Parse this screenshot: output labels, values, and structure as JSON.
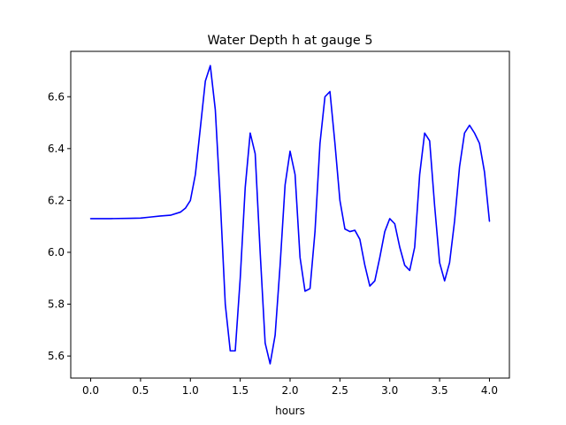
{
  "chart_data": {
    "type": "line",
    "title": "Water Depth h at gauge 5",
    "xlabel": "hours",
    "ylabel": "",
    "xlim": [
      -0.2,
      4.2
    ],
    "ylim": [
      5.515,
      6.775
    ],
    "xticks": [
      0.0,
      0.5,
      1.0,
      1.5,
      2.0,
      2.5,
      3.0,
      3.5,
      4.0
    ],
    "xtick_labels": [
      "0.0",
      "0.5",
      "1.0",
      "1.5",
      "2.0",
      "2.5",
      "3.0",
      "3.5",
      "4.0"
    ],
    "yticks": [
      5.6,
      5.8,
      6.0,
      6.2,
      6.4,
      6.6
    ],
    "ytick_labels": [
      "5.6",
      "5.8",
      "6.0",
      "6.2",
      "6.4",
      "6.6"
    ],
    "grid": false,
    "series": [
      {
        "name": "",
        "color": "#0000ff",
        "x": [
          0.0,
          0.2,
          0.4,
          0.5,
          0.6,
          0.7,
          0.8,
          0.9,
          0.95,
          1.0,
          1.05,
          1.1,
          1.15,
          1.2,
          1.25,
          1.3,
          1.35,
          1.4,
          1.45,
          1.5,
          1.55,
          1.6,
          1.65,
          1.7,
          1.75,
          1.8,
          1.85,
          1.9,
          1.95,
          2.0,
          2.05,
          2.1,
          2.15,
          2.2,
          2.25,
          2.3,
          2.35,
          2.4,
          2.45,
          2.5,
          2.55,
          2.6,
          2.65,
          2.7,
          2.75,
          2.8,
          2.85,
          2.9,
          2.95,
          3.0,
          3.05,
          3.1,
          3.15,
          3.2,
          3.25,
          3.3,
          3.35,
          3.4,
          3.45,
          3.5,
          3.55,
          3.6,
          3.65,
          3.7,
          3.75,
          3.8,
          3.85,
          3.9,
          3.95,
          4.0
        ],
        "y": [
          6.13,
          6.13,
          6.131,
          6.132,
          6.136,
          6.14,
          6.143,
          6.155,
          6.17,
          6.2,
          6.3,
          6.48,
          6.66,
          6.72,
          6.55,
          6.2,
          5.8,
          5.62,
          5.62,
          5.9,
          6.25,
          6.46,
          6.38,
          6.0,
          5.65,
          5.57,
          5.68,
          5.95,
          6.26,
          6.39,
          6.3,
          5.98,
          5.85,
          5.86,
          6.08,
          6.42,
          6.6,
          6.62,
          6.42,
          6.2,
          6.09,
          6.08,
          6.085,
          6.05,
          5.95,
          5.87,
          5.89,
          5.98,
          6.08,
          6.13,
          6.11,
          6.02,
          5.95,
          5.93,
          6.02,
          6.3,
          6.46,
          6.43,
          6.18,
          5.96,
          5.89,
          5.96,
          6.12,
          6.33,
          6.46,
          6.49,
          6.46,
          6.42,
          6.31,
          6.12
        ]
      }
    ]
  }
}
